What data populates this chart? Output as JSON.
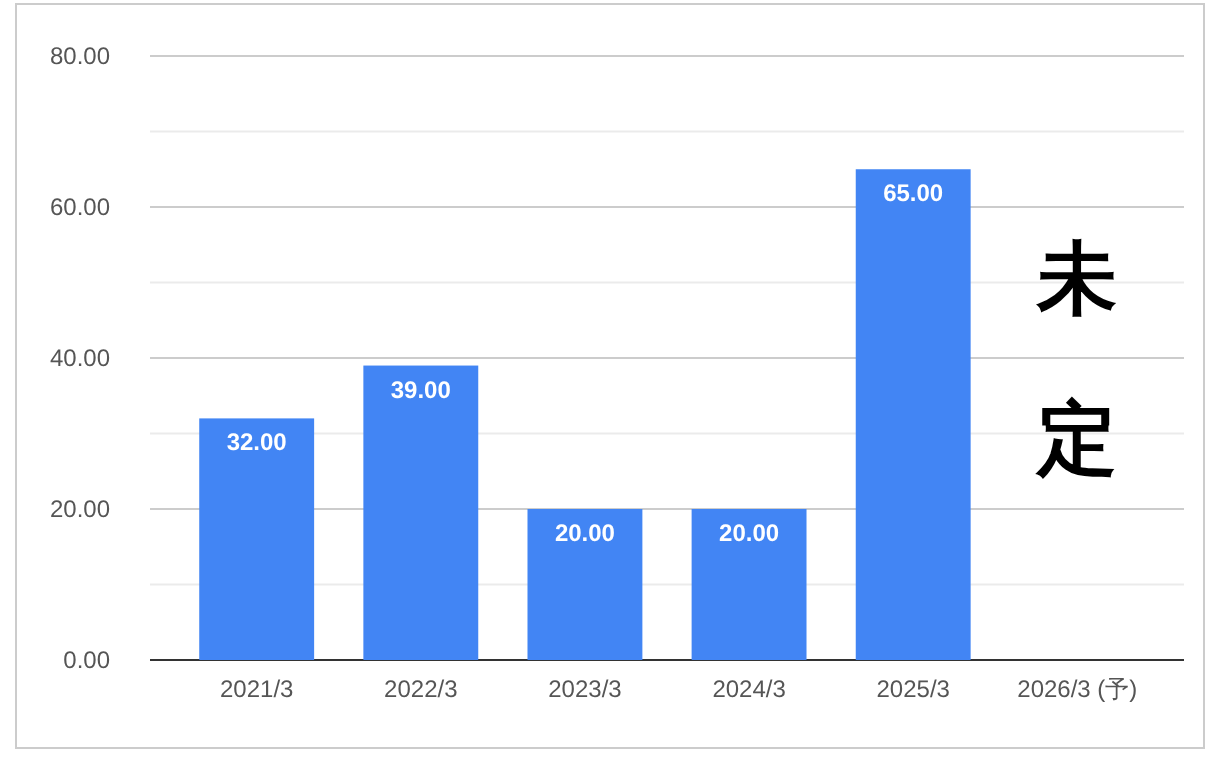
{
  "chart_data": {
    "type": "bar",
    "categories": [
      "2021/3",
      "2022/3",
      "2023/3",
      "2024/3",
      "2025/3",
      "2026/3 (予)"
    ],
    "values": [
      32,
      39,
      20,
      20,
      65,
      null
    ],
    "color": "#4285f4",
    "value_labels": [
      "32.00",
      "39.00",
      "20.00",
      "20.00",
      "65.00",
      null
    ],
    "ylim": [
      0,
      80
    ],
    "yticks": [
      {
        "value": 0,
        "label": "0.00"
      },
      {
        "value": 10,
        "label": null
      },
      {
        "value": 20,
        "label": "20.00"
      },
      {
        "value": 30,
        "label": null
      },
      {
        "value": 40,
        "label": "40.00"
      },
      {
        "value": 50,
        "label": null
      },
      {
        "value": 60,
        "label": "60.00"
      },
      {
        "value": 70,
        "label": null
      },
      {
        "value": 80,
        "label": "80.00"
      }
    ],
    "grid": true,
    "annotations": [
      "未定"
    ]
  }
}
